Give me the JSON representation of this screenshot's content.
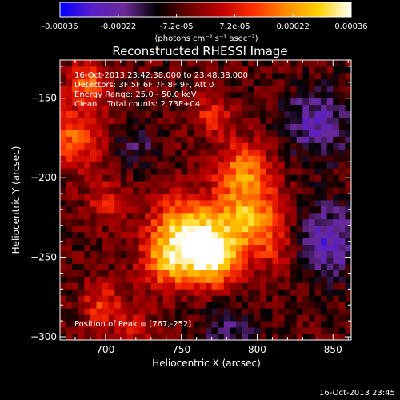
{
  "chart_data": {
    "type": "heatmap",
    "title": "Reconstructed RHESSI Image",
    "xlabel": "Heliocentric X (arcsec)",
    "ylabel": "Heliocentric Y (arcsec)",
    "xlim": [
      670,
      862
    ],
    "ylim": [
      -302,
      -126
    ],
    "xticks": [
      700,
      750,
      800,
      850
    ],
    "yticks": [
      -150,
      -200,
      -250,
      -300
    ],
    "colorbar": {
      "min": -0.00036,
      "max": 0.00036,
      "tick_labels": [
        "-0.00036",
        "-0.00022",
        "-7.2e-05",
        "7.2e-05",
        "0.00022",
        "0.00036"
      ],
      "unit_label": "(photons cm⁻² s⁻¹ asec⁻²)",
      "colormap": [
        "#0000ff",
        "#5a1ec8",
        "#6a2a96",
        "#000000",
        "#6e0000",
        "#c00000",
        "#ff3000",
        "#ff8c00",
        "#ffd200",
        "#ffffff"
      ]
    },
    "annotations": [
      "16-Oct-2013 23:42:38.000 to 23:48:38.000",
      "Detectors: 3F 5F 6F 7F 8F 9F, Att 0",
      "Energy Range: 25.0 - 50.0 keV",
      "Clean    Total counts: 2.73E+04"
    ],
    "peak_label": "Position of Peak = [767,-252]",
    "peak_position": [
      767,
      -252
    ],
    "sources": [
      {
        "x": 752,
        "y": -235,
        "amplitude": 0.00034,
        "sigma": 16
      },
      {
        "x": 770,
        "y": -250,
        "amplitude": 0.00036,
        "sigma": 13
      },
      {
        "x": 795,
        "y": -225,
        "amplitude": 0.00028,
        "sigma": 15
      },
      {
        "x": 790,
        "y": -195,
        "amplitude": 0.00022,
        "sigma": 13
      },
      {
        "x": 738,
        "y": -255,
        "amplitude": 0.00018,
        "sigma": 11
      },
      {
        "x": 815,
        "y": -245,
        "amplitude": 0.0001,
        "sigma": 12
      },
      {
        "x": 680,
        "y": -175,
        "amplitude": 0.00022,
        "sigma": 13
      },
      {
        "x": 688,
        "y": -140,
        "amplitude": 0.0002,
        "sigma": 10
      },
      {
        "x": 770,
        "y": -160,
        "amplitude": 0.00015,
        "sigma": 9
      },
      {
        "x": 700,
        "y": -215,
        "amplitude": 0.00012,
        "sigma": 10
      },
      {
        "x": 698,
        "y": -280,
        "amplitude": 0.00016,
        "sigma": 10
      },
      {
        "x": 720,
        "y": -295,
        "amplitude": 0.00012,
        "sigma": 8
      },
      {
        "x": 840,
        "y": -165,
        "amplitude": -0.00018,
        "sigma": 15
      },
      {
        "x": 845,
        "y": -240,
        "amplitude": -0.0002,
        "sigma": 16
      },
      {
        "x": 720,
        "y": -180,
        "amplitude": -0.0001,
        "sigma": 10
      },
      {
        "x": 780,
        "y": -295,
        "amplitude": -0.00012,
        "sigma": 12
      }
    ]
  },
  "timestamp": "16-Oct-2013 23:45"
}
